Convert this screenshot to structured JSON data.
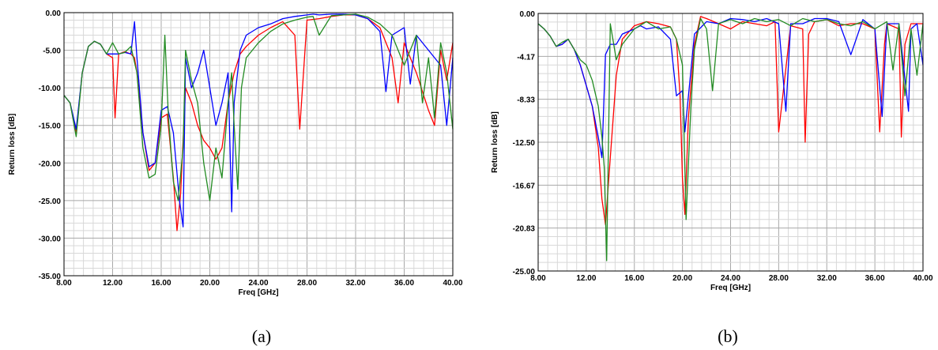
{
  "chart_data": [
    {
      "type": "line",
      "xlabel": "Freq [GHz]",
      "ylabel": "Return loss [dB]",
      "xlim": [
        8,
        40
      ],
      "ylim": [
        -35,
        0
      ],
      "xticks": [
        "8.00",
        "12.00",
        "16.00",
        "20.00",
        "24.00",
        "28.00",
        "32.00",
        "36.00",
        "40.00"
      ],
      "yticks": [
        "0.00",
        "-5.00",
        "-10.00",
        "-15.00",
        "-20.00",
        "-25.00",
        "-30.00",
        "-35.00"
      ],
      "grid": true,
      "caption": "(a)",
      "series": [
        {
          "color": "#ff0000",
          "x": [
            8,
            8.5,
            9,
            9.5,
            10,
            10.5,
            11,
            11.5,
            12,
            12.2,
            12.5,
            13,
            13.5,
            13.8,
            14,
            14.5,
            15,
            15.5,
            16,
            16.5,
            17,
            17.3,
            17.6,
            18,
            18.5,
            19,
            19.5,
            20,
            20.5,
            21,
            21.5,
            22,
            22.5,
            23,
            24,
            25,
            26,
            27,
            27.4,
            28,
            29,
            30,
            31,
            32,
            33,
            34,
            35,
            35.5,
            36,
            37,
            38,
            38.5,
            39,
            39.5,
            40
          ],
          "y": [
            -11,
            -12,
            -16,
            -8,
            -4.5,
            -3.8,
            -4.2,
            -5.5,
            -6,
            -14,
            -5.5,
            -5.2,
            -5.5,
            -6,
            -8,
            -16,
            -21,
            -20,
            -14,
            -13.5,
            -22,
            -29,
            -24,
            -10,
            -12,
            -15,
            -17,
            -18,
            -19.5,
            -18,
            -12,
            -8,
            -5.5,
            -4.5,
            -3,
            -2,
            -1.2,
            -3,
            -15.5,
            -1,
            -0.8,
            -0.5,
            -0.3,
            -0.3,
            -0.8,
            -2,
            -6,
            -12,
            -4,
            -8,
            -13,
            -15,
            -5,
            -9,
            -4
          ]
        },
        {
          "color": "#0000ff",
          "x": [
            8,
            8.5,
            9,
            9.5,
            10,
            10.5,
            11,
            11.5,
            12,
            12.5,
            13,
            13.5,
            13.8,
            14,
            14.5,
            15,
            15.5,
            16,
            16.5,
            17,
            17.5,
            17.8,
            18,
            18.5,
            19,
            19.5,
            20,
            20.5,
            21,
            21.5,
            21.8,
            22,
            22.5,
            23,
            24,
            25,
            26,
            27,
            28,
            28.5,
            29,
            30,
            31,
            32,
            33,
            34,
            34.5,
            35,
            36,
            36.5,
            37,
            38,
            39,
            39.5,
            40
          ],
          "y": [
            -11,
            -12,
            -15.5,
            -8,
            -4.5,
            -3.8,
            -4.2,
            -5.5,
            -5.5,
            -5.5,
            -5.3,
            -5.5,
            -1.2,
            -6,
            -16,
            -20.5,
            -20,
            -13,
            -12.5,
            -16,
            -25,
            -28.5,
            -6,
            -10,
            -8,
            -5,
            -10,
            -15,
            -12,
            -8,
            -26.5,
            -12,
            -5,
            -3,
            -2,
            -1.5,
            -0.8,
            -0.5,
            -0.3,
            -0.2,
            -0.3,
            -0.2,
            -0.2,
            -0.3,
            -0.8,
            -2.5,
            -10.5,
            -3,
            -2,
            -9.5,
            -3,
            -5,
            -7,
            -15,
            -6
          ]
        },
        {
          "color": "#228b22",
          "x": [
            8,
            8.5,
            9,
            9.5,
            10,
            10.5,
            11,
            11.5,
            12,
            12.5,
            13,
            13.5,
            14,
            14.5,
            15,
            15.5,
            16,
            16.3,
            16.6,
            17,
            17.4,
            17.8,
            18,
            18.5,
            19,
            19.5,
            20,
            20.5,
            21,
            21.5,
            21.8,
            22,
            22.3,
            22.6,
            23,
            24,
            25,
            26,
            27,
            28,
            28.5,
            29,
            30,
            31,
            32,
            33,
            34,
            35,
            36,
            37,
            37.5,
            38,
            38.5,
            39,
            39.5,
            40
          ],
          "y": [
            -11,
            -12,
            -16.5,
            -8,
            -4.5,
            -3.8,
            -4.2,
            -5.5,
            -4,
            -5.5,
            -5.3,
            -4.5,
            -8,
            -18,
            -22,
            -21.5,
            -15,
            -3,
            -14,
            -22.5,
            -25,
            -18,
            -5,
            -9,
            -12,
            -20,
            -25,
            -18,
            -22,
            -12,
            -8,
            -15,
            -23.5,
            -10,
            -6,
            -4,
            -2.5,
            -1.5,
            -1,
            -0.6,
            -0.5,
            -3,
            -0.4,
            -0.3,
            -0.2,
            -0.6,
            -1.5,
            -3,
            -7,
            -3,
            -12,
            -6,
            -14,
            -4,
            -8,
            -15.5
          ]
        }
      ]
    },
    {
      "type": "line",
      "xlabel": "Freq [GHz]",
      "ylabel": "Return loss [dB]",
      "xlim": [
        8,
        40
      ],
      "ylim": [
        -25,
        0
      ],
      "xticks": [
        "8.00",
        "12.00",
        "16.00",
        "20.00",
        "24.00",
        "28.00",
        "32.00",
        "36.00",
        "40.00"
      ],
      "yticks": [
        "0.00",
        "-4.17",
        "-8.33",
        "-12.50",
        "-16.67",
        "-20.83",
        "-25.00"
      ],
      "grid": true,
      "caption": "(b)",
      "series": [
        {
          "color": "#ff0000",
          "x": [
            8,
            8.5,
            9,
            9.5,
            10,
            10.5,
            11,
            11.5,
            12,
            12.5,
            13,
            13.3,
            13.6,
            14,
            14.5,
            15,
            16,
            17,
            18,
            19,
            19.5,
            19.8,
            20,
            20.2,
            20.5,
            21,
            21.5,
            22,
            23,
            24,
            25,
            26,
            27,
            27.7,
            28,
            29,
            30,
            30.2,
            30.5,
            31,
            32,
            33,
            34,
            35,
            36,
            36.4,
            36.8,
            37,
            38,
            38.2,
            38.5,
            39,
            40
          ],
          "y": [
            -1,
            -1.5,
            -2.2,
            -3.2,
            -3,
            -2.5,
            -3.5,
            -5,
            -7,
            -9,
            -13,
            -18,
            -20.5,
            -14,
            -6,
            -2.5,
            -1.2,
            -0.8,
            -1,
            -1.3,
            -2.5,
            -8,
            -16,
            -19.5,
            -10,
            -3,
            -0.3,
            -0.5,
            -1,
            -1.5,
            -0.8,
            -1,
            -1.2,
            -0.8,
            -11.5,
            -1.2,
            -1.5,
            -12.5,
            -2,
            -0.8,
            -0.6,
            -1.2,
            -1,
            -1,
            -1.5,
            -11.5,
            -3,
            -1,
            -1.5,
            -12,
            -3,
            -1,
            -1
          ]
        },
        {
          "color": "#0000ff",
          "x": [
            8,
            8.5,
            9,
            9.5,
            10,
            10.5,
            11,
            11.5,
            12,
            12.5,
            13,
            13.3,
            13.6,
            14,
            14.5,
            15,
            16,
            16.5,
            17,
            18,
            19,
            19.5,
            20,
            20.2,
            20.5,
            21,
            22,
            23,
            24,
            25,
            26,
            27,
            28,
            28.6,
            29,
            30,
            31,
            32,
            33,
            34,
            35,
            36,
            36.6,
            37,
            38,
            38.8,
            39,
            39.5,
            40
          ],
          "y": [
            -1,
            -1.5,
            -2.2,
            -3.2,
            -3,
            -2.5,
            -3.5,
            -5,
            -7,
            -9,
            -12,
            -14,
            -4,
            -3,
            -3,
            -2,
            -1.5,
            -1.2,
            -1.5,
            -1.3,
            -2.5,
            -8,
            -7.5,
            -11.5,
            -8,
            -2,
            -0.8,
            -1,
            -0.5,
            -0.6,
            -0.8,
            -0.5,
            -1,
            -9.5,
            -1,
            -1,
            -0.5,
            -0.5,
            -0.8,
            -4,
            -0.6,
            -1.5,
            -10,
            -1,
            -1,
            -9.5,
            -1.5,
            -1,
            -5
          ]
        },
        {
          "color": "#228b22",
          "x": [
            8,
            8.5,
            9,
            9.5,
            10,
            10.5,
            11,
            11.5,
            12,
            12.5,
            13,
            13.3,
            13.5,
            13.7,
            14,
            14.5,
            15,
            16,
            17,
            18,
            19,
            19.5,
            20,
            20.3,
            20.7,
            21,
            21.5,
            22,
            22.5,
            23,
            24,
            25,
            26,
            27,
            28,
            29,
            30,
            31,
            32,
            33,
            34,
            35,
            36,
            37,
            37.5,
            38,
            38.5,
            39,
            39.5,
            40
          ],
          "y": [
            -1,
            -1.5,
            -2.2,
            -3.2,
            -2.8,
            -2.5,
            -3.5,
            -4.5,
            -5,
            -6.5,
            -9,
            -12,
            -15,
            -24,
            -1,
            -4.5,
            -3,
            -1.5,
            -0.8,
            -1.5,
            -1.3,
            -2.5,
            -5,
            -20,
            -9,
            -3.5,
            -0.5,
            -1.5,
            -7.5,
            -1,
            -0.6,
            -1,
            -0.5,
            -0.8,
            -0.6,
            -1.2,
            -0.5,
            -0.8,
            -0.6,
            -1,
            -1.2,
            -0.8,
            -1.5,
            -0.8,
            -5.5,
            -1,
            -8,
            -1.5,
            -6,
            -1
          ]
        }
      ]
    }
  ]
}
